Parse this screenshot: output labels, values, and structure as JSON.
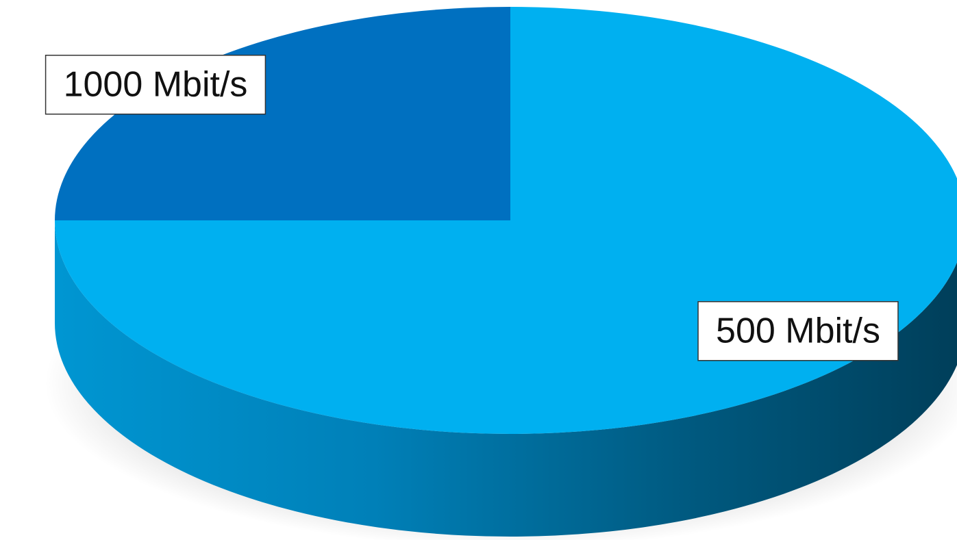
{
  "chart_data": {
    "type": "pie",
    "style": "3d",
    "categories": [
      "1000 Mbit/s",
      "500 Mbit/s"
    ],
    "values": [
      25,
      75
    ],
    "colors": [
      "#0070C0",
      "#00B0F0"
    ],
    "data_labels": [
      "1000 Mbit/s",
      "500 Mbit/s"
    ],
    "title": "",
    "legend": "none"
  }
}
